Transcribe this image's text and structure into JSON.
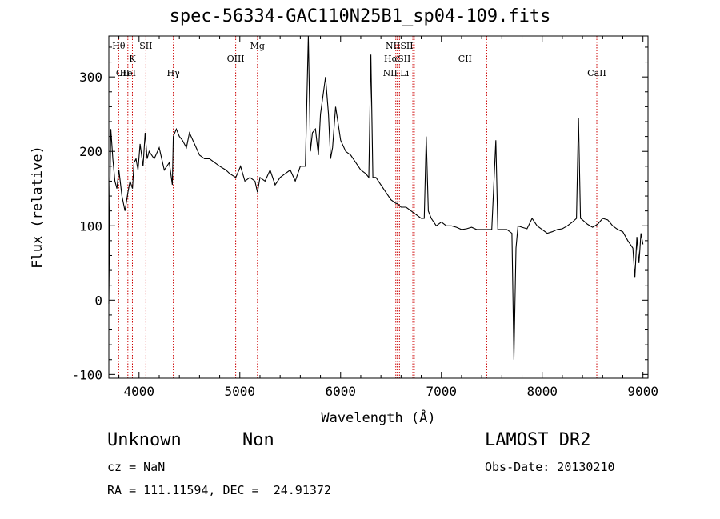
{
  "chart_data": {
    "type": "line",
    "title": "spec-56334-GAC110N25B1_sp04-109.fits",
    "xlabel": "Wavelength (Å)",
    "ylabel": "Flux (relative)",
    "xlim": [
      3700,
      9050
    ],
    "ylim": [
      -105,
      355
    ],
    "xticks": [
      4000,
      5000,
      6000,
      7000,
      8000,
      9000
    ],
    "yticks": [
      -100,
      0,
      100,
      200,
      300
    ],
    "line_color": "#000000",
    "marker_color": "#cc0000",
    "series": [
      {
        "x": [
          3700,
          3710,
          3720,
          3740,
          3760,
          3780,
          3800,
          3830,
          3860,
          3890,
          3910,
          3935,
          3950,
          3970,
          3990,
          4010,
          4040,
          4060,
          4080,
          4100,
          4150,
          4200,
          4250,
          4300,
          4330,
          4340,
          4370,
          4400,
          4430,
          4470,
          4500,
          4550,
          4600,
          4650,
          4700,
          4750,
          4800,
          4861,
          4900,
          4960,
          5007,
          5050,
          5100,
          5150,
          5175,
          5200,
          5250,
          5300,
          5350,
          5400,
          5450,
          5500,
          5550,
          5600,
          5650,
          5680,
          5700,
          5720,
          5750,
          5780,
          5800,
          5850,
          5880,
          5900,
          5920,
          5950,
          6000,
          6050,
          6100,
          6150,
          6200,
          6250,
          6280,
          6300,
          6320,
          6350,
          6400,
          6450,
          6500,
          6550,
          6563,
          6600,
          6650,
          6700,
          6750,
          6800,
          6830,
          6850,
          6870,
          6900,
          6950,
          7000,
          7050,
          7100,
          7150,
          7200,
          7250,
          7300,
          7350,
          7400,
          7450,
          7500,
          7540,
          7560,
          7600,
          7650,
          7700,
          7720,
          7740,
          7760,
          7800,
          7850,
          7900,
          7950,
          8000,
          8050,
          8100,
          8150,
          8200,
          8250,
          8300,
          8340,
          8360,
          8380,
          8400,
          8450,
          8500,
          8550,
          8600,
          8650,
          8700,
          8750,
          8800,
          8850,
          8900,
          8920,
          8940,
          8960,
          8980,
          9000
        ],
        "y": [
          -5,
          150,
          230,
          190,
          160,
          150,
          175,
          140,
          120,
          145,
          160,
          150,
          185,
          190,
          175,
          210,
          180,
          225,
          190,
          200,
          190,
          205,
          175,
          185,
          155,
          220,
          230,
          220,
          215,
          205,
          225,
          210,
          195,
          190,
          190,
          185,
          180,
          175,
          170,
          165,
          180,
          160,
          165,
          160,
          145,
          165,
          160,
          175,
          155,
          165,
          170,
          175,
          160,
          180,
          180,
          355,
          200,
          225,
          230,
          195,
          250,
          300,
          250,
          190,
          205,
          260,
          215,
          200,
          195,
          185,
          175,
          170,
          165,
          330,
          165,
          165,
          155,
          145,
          135,
          130,
          130,
          125,
          125,
          120,
          115,
          110,
          110,
          220,
          120,
          110,
          100,
          105,
          100,
          100,
          98,
          95,
          96,
          98,
          95,
          95,
          95,
          95,
          215,
          95,
          95,
          95,
          90,
          -80,
          70,
          100,
          98,
          96,
          110,
          100,
          95,
          90,
          92,
          95,
          96,
          100,
          105,
          110,
          245,
          110,
          108,
          102,
          98,
          102,
          110,
          108,
          100,
          95,
          92,
          80,
          70,
          30,
          85,
          50,
          90,
          75
        ]
      }
    ],
    "line_markers": [
      {
        "label": "Hθ",
        "x": 3798,
        "row": 0
      },
      {
        "label": "CII",
        "x": 3838,
        "row": 2
      },
      {
        "label": "K",
        "x": 3934,
        "row": 1
      },
      {
        "label": "HeI",
        "x": 3889,
        "row": 2
      },
      {
        "label": "SII",
        "x": 4068,
        "row": 0
      },
      {
        "label": "Hγ",
        "x": 4340,
        "row": 2
      },
      {
        "label": "OIII",
        "x": 4959,
        "row": 1
      },
      {
        "label": "Mg",
        "x": 5175,
        "row": 0
      },
      {
        "label": "NIISII",
        "x": 6584,
        "row": 0
      },
      {
        "label": "HαSII",
        "x": 6563,
        "row": 1
      },
      {
        "label": "NII Li",
        "x": 6548,
        "row": 2
      },
      {
        "label": "CII",
        "x": 7235,
        "row": 1
      },
      {
        "label": "CaII",
        "x": 8542,
        "row": 2
      }
    ],
    "marker_lines_x": [
      3798,
      3889,
      3934,
      4068,
      4340,
      4959,
      5175,
      6548,
      6563,
      6584,
      6717,
      6731,
      7450,
      8542
    ]
  },
  "info": {
    "class": "Unknown",
    "subclass": "Non",
    "survey": "LAMOST DR2",
    "cz": "cz = NaN",
    "obs_date": "Obs-Date: 20130210",
    "radec": "RA = 111.11594, DEC =  24.91372"
  }
}
